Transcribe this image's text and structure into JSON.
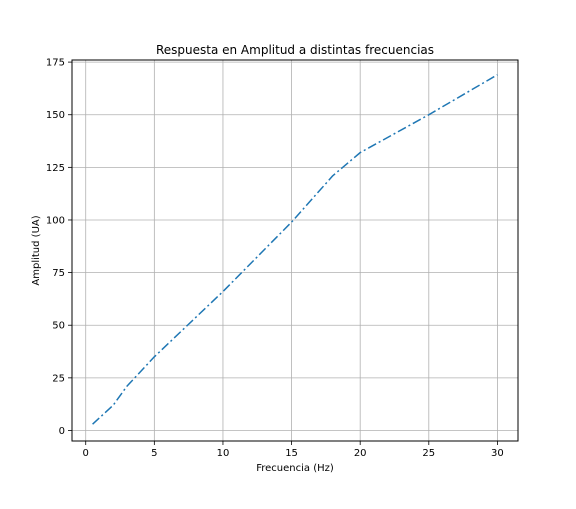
{
  "chart_data": {
    "type": "line",
    "title": "Respuesta en Amplitud a distintas frecuencias",
    "xlabel": "Frecuencia (Hz)",
    "ylabel": "Amplitud (UA)",
    "xlim": [
      -1,
      31.5
    ],
    "ylim": [
      -5,
      176
    ],
    "grid": true,
    "x_ticks": [
      0,
      5,
      10,
      15,
      20,
      25,
      30
    ],
    "y_ticks": [
      0,
      25,
      50,
      75,
      100,
      125,
      150,
      175
    ],
    "series": [
      {
        "color": "#1f77b4",
        "line_style": "dash-dot",
        "x": [
          0.5,
          2,
          3,
          5,
          10,
          15,
          18,
          20,
          25,
          30
        ],
        "y": [
          3,
          12,
          21,
          35,
          66,
          99,
          121,
          132,
          150,
          169
        ]
      }
    ]
  }
}
